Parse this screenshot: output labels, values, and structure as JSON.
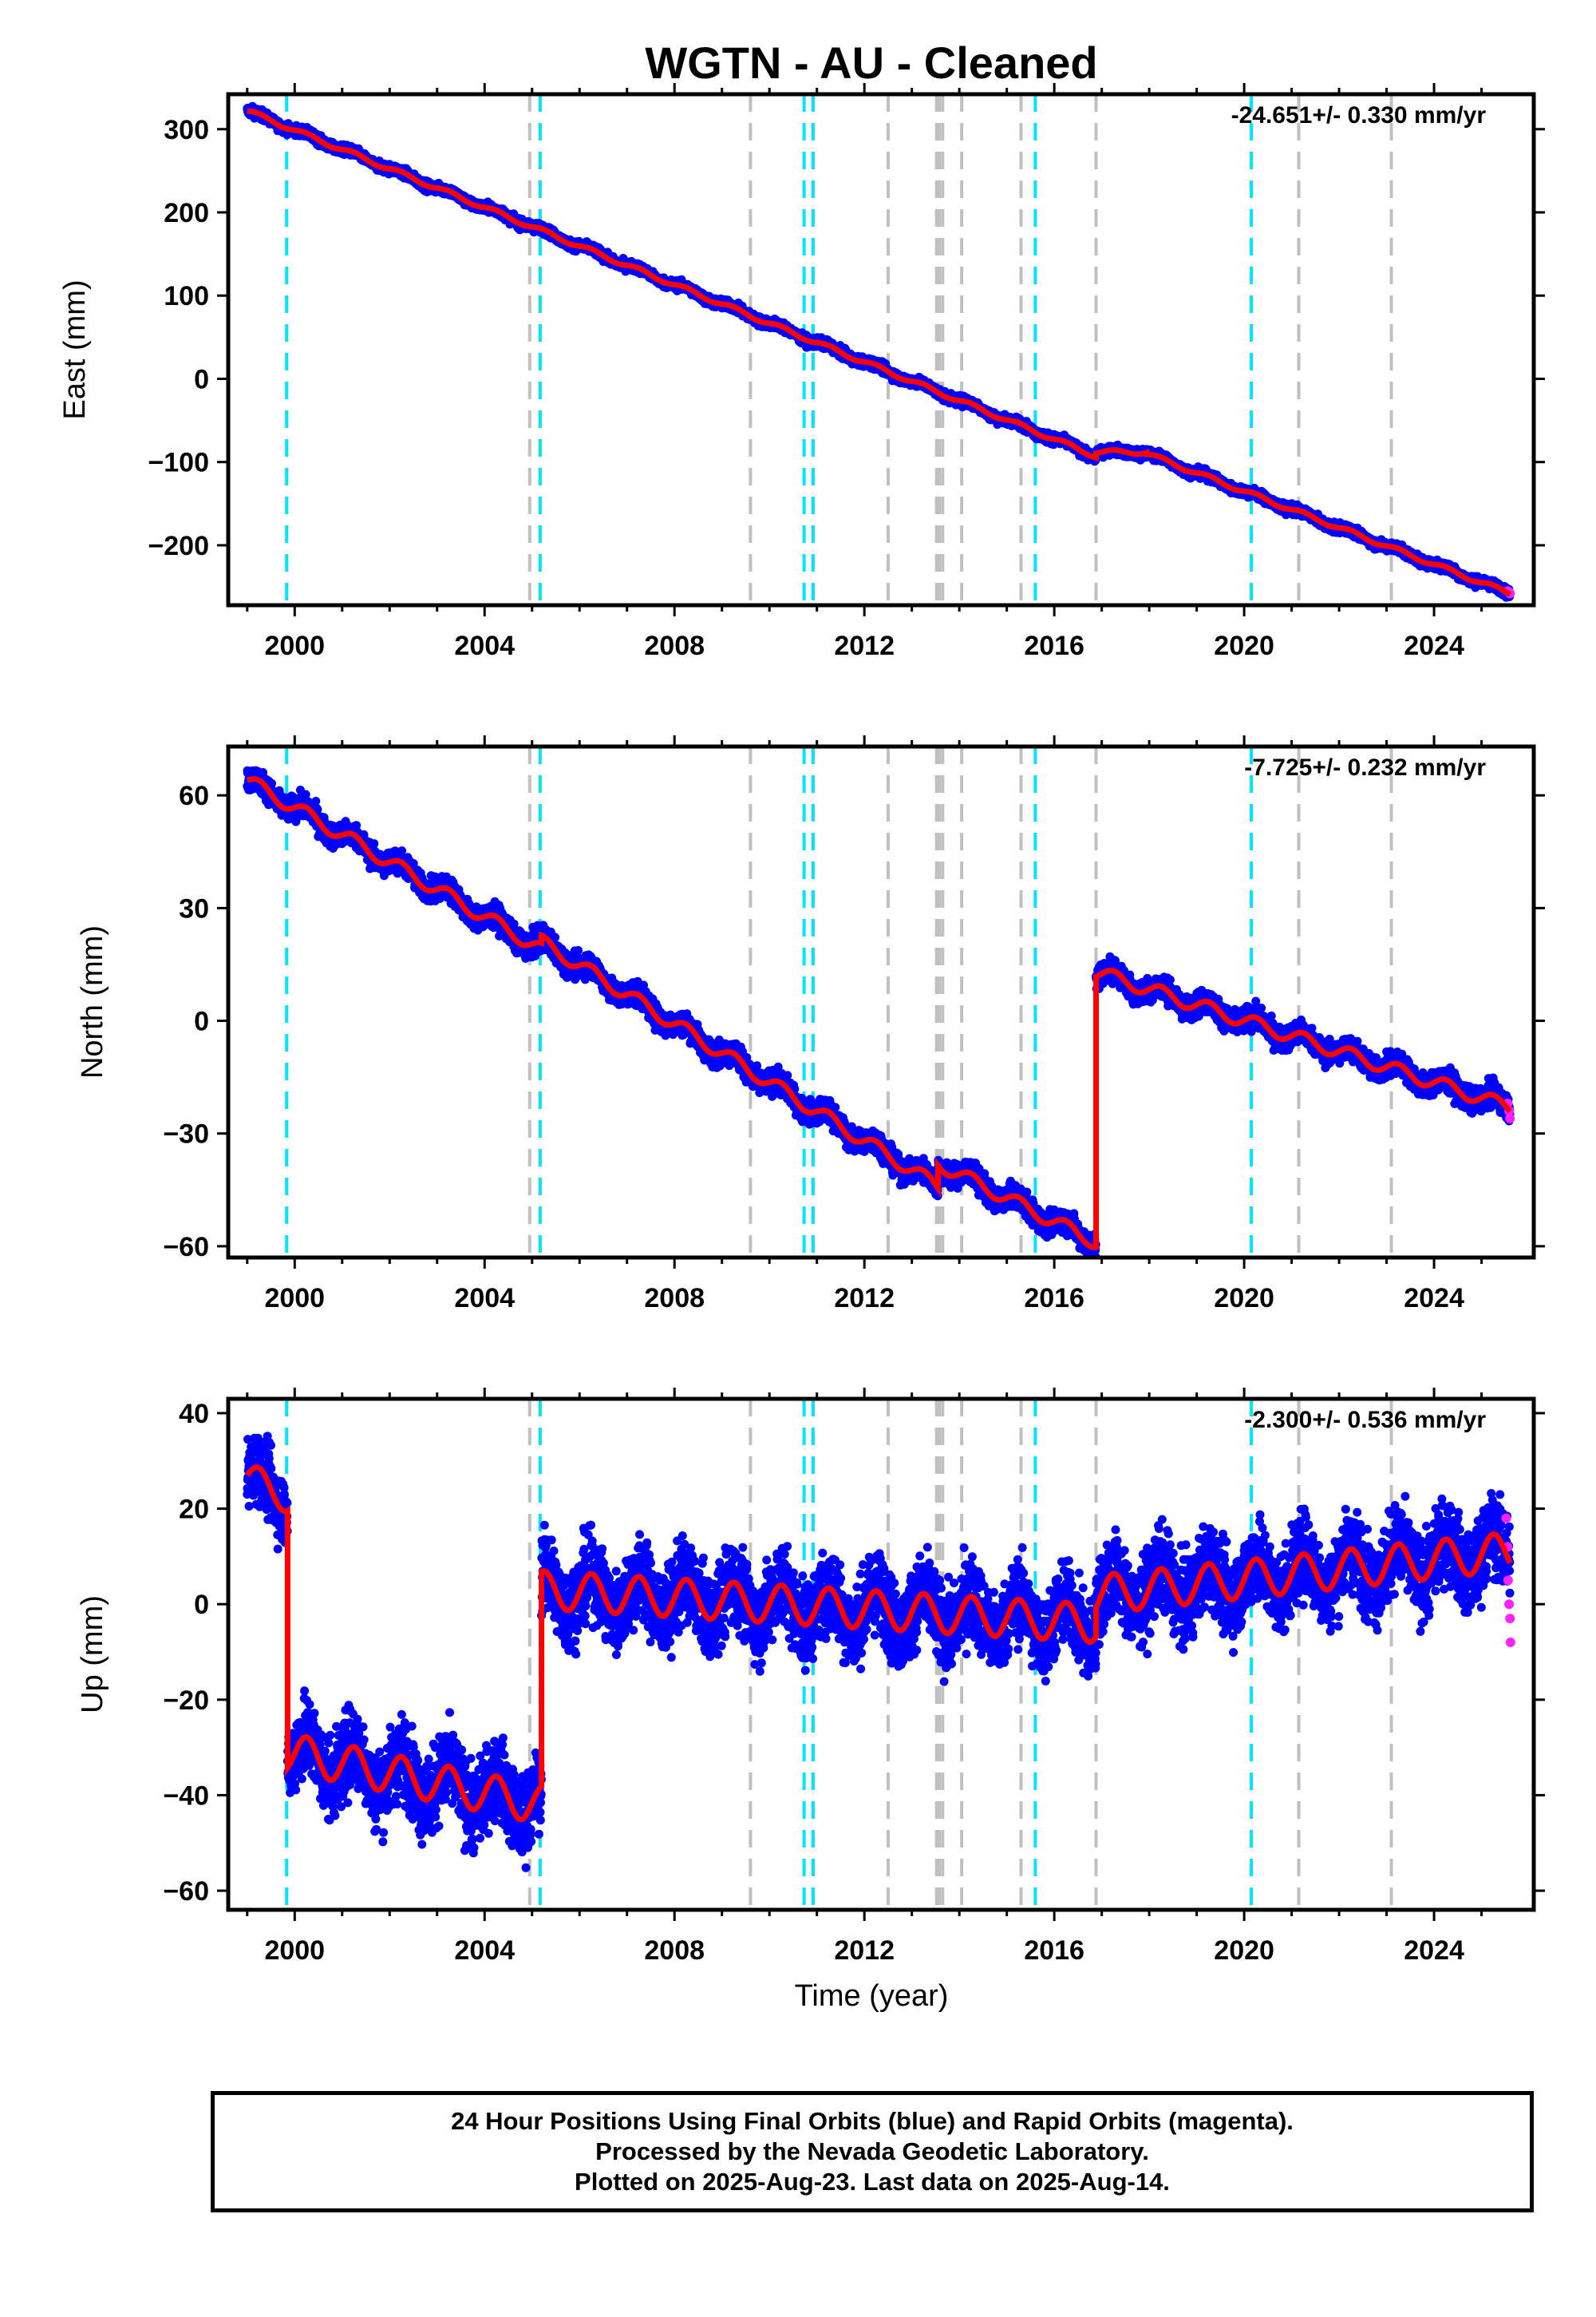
{
  "title": "WGTN  - AU - Cleaned",
  "xlabel": "Time (year)",
  "footer": {
    "line1": "24 Hour Positions Using Final Orbits (blue) and Rapid Orbits (magenta).",
    "line2": "Processed by the Nevada Geodetic Laboratory.",
    "line3": "Plotted on 2025-Aug-23. Last data on 2025-Aug-14."
  },
  "colors": {
    "final": "#0000ff",
    "rapid": "#ff22ff",
    "model": "#ff0000",
    "equipment_change": "#00e5ff",
    "earthquake": "#c0c0c0"
  },
  "chart_data": [
    {
      "type": "scatter",
      "panel": "east",
      "ylabel": "East (mm)",
      "rate_label": "-24.651+/- 0.330 mm/yr",
      "xlim": [
        1998.6,
        2026.1
      ],
      "ylim": [
        -272,
        342
      ],
      "xticks": [
        2000,
        2004,
        2008,
        2012,
        2016,
        2020,
        2024
      ],
      "yticks": [
        300,
        200,
        100,
        0,
        -100,
        -200
      ],
      "ytick_labels": [
        "300",
        "200",
        "100",
        "0",
        "−100",
        "−200"
      ],
      "segments": [
        {
          "x0": 1999.0,
          "x1": 2016.88,
          "y0": 322,
          "y1": -93,
          "scatter": 4,
          "season": 2.5
        },
        {
          "x0": 2016.88,
          "x1": 2017.95,
          "y0": -88,
          "y1": -88,
          "scatter": 4,
          "season": 2.5
        },
        {
          "x0": 2017.95,
          "x1": 2025.6,
          "y0": -90,
          "y1": -258,
          "scatter": 4,
          "season": 2.5
        }
      ],
      "rapid_points": [
        [
          2025.55,
          -255
        ],
        [
          2025.58,
          -256
        ],
        [
          2025.6,
          -258
        ]
      ]
    },
    {
      "type": "scatter",
      "panel": "north",
      "ylabel": "North (mm)",
      "rate_label": "-7.725+/- 0.232 mm/yr",
      "xlim": [
        1998.6,
        2026.1
      ],
      "ylim": [
        -63,
        73
      ],
      "xticks": [
        2000,
        2004,
        2008,
        2012,
        2016,
        2020,
        2024
      ],
      "yticks": [
        60,
        30,
        0,
        -30,
        -60
      ],
      "ytick_labels": [
        "60",
        "30",
        "0",
        "−30",
        "−60"
      ],
      "segments": [
        {
          "x0": 1999.0,
          "x1": 2005.2,
          "y0": 64,
          "y1": 19,
          "scatter": 2.2,
          "season": 1.8
        },
        {
          "x0": 2005.2,
          "x1": 2013.55,
          "y0": 21,
          "y1": -44,
          "scatter": 2.2,
          "season": 1.8
        },
        {
          "x0": 2013.55,
          "x1": 2016.88,
          "y0": -38,
          "y1": -59,
          "scatter": 2.2,
          "season": 1.8
        },
        {
          "x0": 2016.88,
          "x1": 2025.6,
          "y0": 13,
          "y1": -23,
          "scatter": 2.2,
          "season": 1.8
        }
      ],
      "rapid_points": [
        [
          2025.55,
          -22
        ],
        [
          2025.58,
          -24
        ],
        [
          2025.6,
          -26
        ]
      ]
    },
    {
      "type": "scatter",
      "panel": "up",
      "ylabel": "Up (mm)",
      "rate_label": "-2.300+/- 0.536 mm/yr",
      "xlim": [
        1998.6,
        2026.1
      ],
      "ylim": [
        -64,
        43
      ],
      "xticks": [
        2000,
        2004,
        2008,
        2012,
        2016,
        2020,
        2024
      ],
      "yticks": [
        40,
        20,
        0,
        -20,
        -40,
        -60
      ],
      "ytick_labels": [
        "40",
        "20",
        "0",
        "−20",
        "−40",
        "−60"
      ],
      "segments": [
        {
          "x0": 1999.0,
          "x1": 1999.85,
          "y0": 27,
          "y1": 22,
          "scatter": 5,
          "season": 3
        },
        {
          "x0": 1999.85,
          "x1": 2005.2,
          "y0": -31,
          "y1": -42,
          "scatter": 6,
          "season": 4
        },
        {
          "x0": 2005.2,
          "x1": 2016.88,
          "y0": 3,
          "y1": -4,
          "scatter": 6,
          "season": 4
        },
        {
          "x0": 2016.88,
          "x1": 2025.6,
          "y0": 2,
          "y1": 11,
          "scatter": 6,
          "season": 4
        }
      ],
      "rapid_points": [
        [
          2025.52,
          18
        ],
        [
          2025.55,
          12
        ],
        [
          2025.56,
          5
        ],
        [
          2025.58,
          0
        ],
        [
          2025.6,
          -3
        ],
        [
          2025.61,
          -8
        ]
      ]
    }
  ],
  "events": {
    "equipment_changes": [
      1999.83,
      2005.17,
      2010.73,
      2010.92,
      2015.6,
      2020.15
    ],
    "earthquakes": [
      2004.95,
      2009.6,
      2012.5,
      2013.52,
      2013.58,
      2013.65,
      2014.05,
      2015.3,
      2016.88,
      2021.15,
      2023.1
    ]
  }
}
